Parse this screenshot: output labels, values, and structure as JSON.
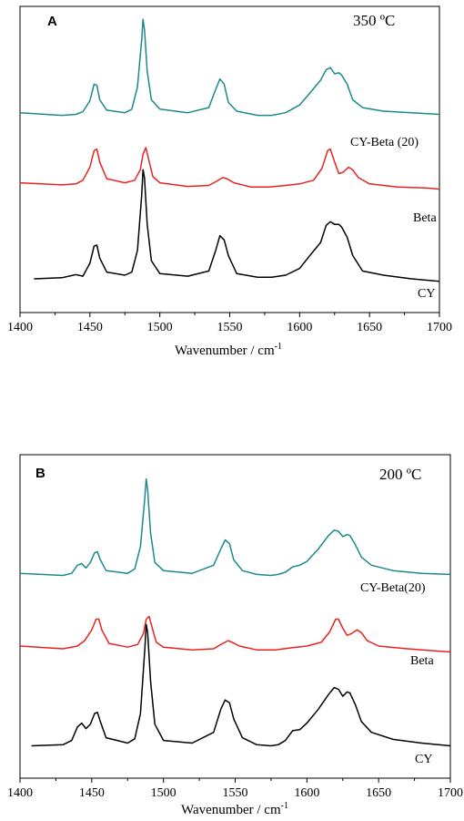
{
  "chart_data": [
    {
      "type": "line",
      "panel": "A",
      "temperature_label": "350 ºC",
      "xlabel": "Wavenumber / cm-1",
      "ylabel": "",
      "xlim": [
        1400,
        1700
      ],
      "xticks": [
        1400,
        1450,
        1500,
        1550,
        1600,
        1650,
        1700
      ],
      "y_ticks_shown": false,
      "grid": false,
      "series": [
        {
          "name": "CY-Beta (20)",
          "color": "#1a8a8a",
          "points": [
            [
              1400,
              3.35
            ],
            [
              1430,
              3.3
            ],
            [
              1440,
              3.32
            ],
            [
              1445,
              3.37
            ],
            [
              1450,
              3.58
            ],
            [
              1453,
              3.9
            ],
            [
              1455,
              3.88
            ],
            [
              1457,
              3.6
            ],
            [
              1462,
              3.4
            ],
            [
              1475,
              3.35
            ],
            [
              1480,
              3.42
            ],
            [
              1484,
              3.85
            ],
            [
              1487,
              4.75
            ],
            [
              1488,
              5.15
            ],
            [
              1489,
              4.95
            ],
            [
              1491,
              4.15
            ],
            [
              1494,
              3.6
            ],
            [
              1500,
              3.42
            ],
            [
              1520,
              3.35
            ],
            [
              1535,
              3.45
            ],
            [
              1540,
              3.8
            ],
            [
              1543,
              4.0
            ],
            [
              1546,
              3.9
            ],
            [
              1549,
              3.55
            ],
            [
              1555,
              3.38
            ],
            [
              1570,
              3.3
            ],
            [
              1580,
              3.3
            ],
            [
              1590,
              3.35
            ],
            [
              1600,
              3.5
            ],
            [
              1608,
              3.75
            ],
            [
              1615,
              3.98
            ],
            [
              1619,
              4.18
            ],
            [
              1622,
              4.22
            ],
            [
              1625,
              4.1
            ],
            [
              1628,
              4.12
            ],
            [
              1630,
              4.08
            ],
            [
              1634,
              3.9
            ],
            [
              1638,
              3.6
            ],
            [
              1645,
              3.45
            ],
            [
              1660,
              3.38
            ],
            [
              1680,
              3.35
            ],
            [
              1700,
              3.32
            ]
          ]
        },
        {
          "name": "Beta",
          "color": "#e8231f",
          "points": [
            [
              1400,
              2.0
            ],
            [
              1430,
              1.96
            ],
            [
              1440,
              1.98
            ],
            [
              1445,
              2.05
            ],
            [
              1450,
              2.3
            ],
            [
              1453,
              2.62
            ],
            [
              1455,
              2.65
            ],
            [
              1457,
              2.4
            ],
            [
              1462,
              2.08
            ],
            [
              1475,
              2.0
            ],
            [
              1482,
              2.05
            ],
            [
              1486,
              2.25
            ],
            [
              1488,
              2.55
            ],
            [
              1490,
              2.68
            ],
            [
              1492,
              2.45
            ],
            [
              1495,
              2.12
            ],
            [
              1500,
              2.0
            ],
            [
              1520,
              1.93
            ],
            [
              1535,
              1.95
            ],
            [
              1540,
              2.02
            ],
            [
              1545,
              2.1
            ],
            [
              1548,
              2.08
            ],
            [
              1553,
              2.0
            ],
            [
              1565,
              1.92
            ],
            [
              1578,
              1.92
            ],
            [
              1590,
              1.95
            ],
            [
              1600,
              1.98
            ],
            [
              1610,
              2.05
            ],
            [
              1616,
              2.28
            ],
            [
              1620,
              2.62
            ],
            [
              1622,
              2.65
            ],
            [
              1625,
              2.4
            ],
            [
              1628,
              2.18
            ],
            [
              1631,
              2.2
            ],
            [
              1635,
              2.3
            ],
            [
              1638,
              2.25
            ],
            [
              1642,
              2.1
            ],
            [
              1650,
              1.98
            ],
            [
              1670,
              1.92
            ],
            [
              1690,
              1.9
            ],
            [
              1700,
              1.88
            ]
          ]
        },
        {
          "name": "CY",
          "color": "#000000",
          "points": [
            [
              1410,
              0.15
            ],
            [
              1430,
              0.17
            ],
            [
              1440,
              0.23
            ],
            [
              1445,
              0.2
            ],
            [
              1450,
              0.45
            ],
            [
              1453,
              0.78
            ],
            [
              1455,
              0.8
            ],
            [
              1457,
              0.55
            ],
            [
              1462,
              0.28
            ],
            [
              1475,
              0.22
            ],
            [
              1480,
              0.28
            ],
            [
              1484,
              0.7
            ],
            [
              1487,
              1.75
            ],
            [
              1488,
              2.25
            ],
            [
              1489,
              2.1
            ],
            [
              1491,
              1.2
            ],
            [
              1494,
              0.5
            ],
            [
              1500,
              0.25
            ],
            [
              1520,
              0.2
            ],
            [
              1535,
              0.3
            ],
            [
              1540,
              0.7
            ],
            [
              1543,
              0.98
            ],
            [
              1546,
              0.9
            ],
            [
              1549,
              0.6
            ],
            [
              1555,
              0.25
            ],
            [
              1570,
              0.18
            ],
            [
              1580,
              0.18
            ],
            [
              1590,
              0.22
            ],
            [
              1600,
              0.35
            ],
            [
              1608,
              0.62
            ],
            [
              1615,
              0.85
            ],
            [
              1619,
              1.18
            ],
            [
              1622,
              1.25
            ],
            [
              1625,
              1.2
            ],
            [
              1628,
              1.2
            ],
            [
              1630,
              1.15
            ],
            [
              1634,
              0.95
            ],
            [
              1638,
              0.6
            ],
            [
              1645,
              0.3
            ],
            [
              1660,
              0.22
            ],
            [
              1680,
              0.15
            ],
            [
              1700,
              0.1
            ]
          ]
        }
      ]
    },
    {
      "type": "line",
      "panel": "B",
      "temperature_label": "200 ºC",
      "xlabel": "Wavenumber / cm-1",
      "ylabel": "",
      "xlim": [
        1400,
        1700
      ],
      "xticks": [
        1400,
        1450,
        1500,
        1550,
        1600,
        1650,
        1700
      ],
      "y_ticks_shown": false,
      "grid": false,
      "series": [
        {
          "name": "CY-Beta(20)",
          "color": "#1a8a8a",
          "points": [
            [
              1400,
              3.4
            ],
            [
              1430,
              3.36
            ],
            [
              1436,
              3.4
            ],
            [
              1440,
              3.55
            ],
            [
              1443,
              3.58
            ],
            [
              1446,
              3.5
            ],
            [
              1449,
              3.6
            ],
            [
              1452,
              3.78
            ],
            [
              1454,
              3.8
            ],
            [
              1456,
              3.65
            ],
            [
              1460,
              3.45
            ],
            [
              1475,
              3.4
            ],
            [
              1480,
              3.48
            ],
            [
              1484,
              3.9
            ],
            [
              1487,
              4.8
            ],
            [
              1488,
              5.15
            ],
            [
              1489,
              4.95
            ],
            [
              1491,
              4.15
            ],
            [
              1494,
              3.6
            ],
            [
              1500,
              3.45
            ],
            [
              1520,
              3.4
            ],
            [
              1535,
              3.55
            ],
            [
              1540,
              3.85
            ],
            [
              1543,
              4.02
            ],
            [
              1546,
              3.95
            ],
            [
              1549,
              3.65
            ],
            [
              1555,
              3.45
            ],
            [
              1565,
              3.38
            ],
            [
              1575,
              3.36
            ],
            [
              1580,
              3.38
            ],
            [
              1585,
              3.42
            ],
            [
              1590,
              3.52
            ],
            [
              1595,
              3.55
            ],
            [
              1600,
              3.62
            ],
            [
              1608,
              3.85
            ],
            [
              1615,
              4.1
            ],
            [
              1619,
              4.2
            ],
            [
              1622,
              4.18
            ],
            [
              1625,
              4.08
            ],
            [
              1628,
              4.12
            ],
            [
              1630,
              4.1
            ],
            [
              1634,
              3.92
            ],
            [
              1638,
              3.7
            ],
            [
              1645,
              3.55
            ],
            [
              1660,
              3.45
            ],
            [
              1680,
              3.4
            ],
            [
              1700,
              3.38
            ]
          ]
        },
        {
          "name": "Beta",
          "color": "#e8231f",
          "points": [
            [
              1400,
              2.05
            ],
            [
              1430,
              2.0
            ],
            [
              1440,
              2.05
            ],
            [
              1445,
              2.15
            ],
            [
              1450,
              2.35
            ],
            [
              1453,
              2.55
            ],
            [
              1455,
              2.55
            ],
            [
              1457,
              2.35
            ],
            [
              1462,
              2.1
            ],
            [
              1475,
              2.03
            ],
            [
              1482,
              2.08
            ],
            [
              1486,
              2.28
            ],
            [
              1488,
              2.55
            ],
            [
              1490,
              2.6
            ],
            [
              1492,
              2.4
            ],
            [
              1495,
              2.12
            ],
            [
              1500,
              2.03
            ],
            [
              1520,
              1.98
            ],
            [
              1535,
              2.0
            ],
            [
              1540,
              2.08
            ],
            [
              1545,
              2.15
            ],
            [
              1548,
              2.12
            ],
            [
              1553,
              2.05
            ],
            [
              1565,
              1.98
            ],
            [
              1578,
              1.98
            ],
            [
              1590,
              2.02
            ],
            [
              1600,
              2.05
            ],
            [
              1610,
              2.12
            ],
            [
              1616,
              2.32
            ],
            [
              1620,
              2.55
            ],
            [
              1622,
              2.55
            ],
            [
              1625,
              2.38
            ],
            [
              1628,
              2.25
            ],
            [
              1631,
              2.28
            ],
            [
              1635,
              2.35
            ],
            [
              1638,
              2.3
            ],
            [
              1642,
              2.15
            ],
            [
              1650,
              2.05
            ],
            [
              1670,
              2.0
            ],
            [
              1690,
              1.96
            ],
            [
              1700,
              1.94
            ]
          ]
        },
        {
          "name": "CY",
          "color": "#000000",
          "points": [
            [
              1408,
              0.2
            ],
            [
              1430,
              0.22
            ],
            [
              1436,
              0.3
            ],
            [
              1440,
              0.55
            ],
            [
              1443,
              0.62
            ],
            [
              1446,
              0.52
            ],
            [
              1449,
              0.6
            ],
            [
              1452,
              0.8
            ],
            [
              1454,
              0.82
            ],
            [
              1456,
              0.65
            ],
            [
              1460,
              0.35
            ],
            [
              1475,
              0.25
            ],
            [
              1480,
              0.33
            ],
            [
              1484,
              0.8
            ],
            [
              1487,
              2.0
            ],
            [
              1488,
              2.45
            ],
            [
              1489,
              2.3
            ],
            [
              1491,
              1.4
            ],
            [
              1494,
              0.6
            ],
            [
              1500,
              0.3
            ],
            [
              1520,
              0.25
            ],
            [
              1535,
              0.45
            ],
            [
              1540,
              0.88
            ],
            [
              1543,
              1.05
            ],
            [
              1546,
              1.0
            ],
            [
              1549,
              0.7
            ],
            [
              1555,
              0.35
            ],
            [
              1565,
              0.22
            ],
            [
              1575,
              0.2
            ],
            [
              1580,
              0.22
            ],
            [
              1585,
              0.3
            ],
            [
              1590,
              0.48
            ],
            [
              1595,
              0.5
            ],
            [
              1600,
              0.62
            ],
            [
              1608,
              0.88
            ],
            [
              1615,
              1.15
            ],
            [
              1619,
              1.28
            ],
            [
              1622,
              1.25
            ],
            [
              1625,
              1.12
            ],
            [
              1628,
              1.2
            ],
            [
              1630,
              1.18
            ],
            [
              1634,
              0.95
            ],
            [
              1638,
              0.65
            ],
            [
              1645,
              0.45
            ],
            [
              1660,
              0.32
            ],
            [
              1680,
              0.25
            ],
            [
              1700,
              0.2
            ]
          ]
        }
      ]
    }
  ]
}
